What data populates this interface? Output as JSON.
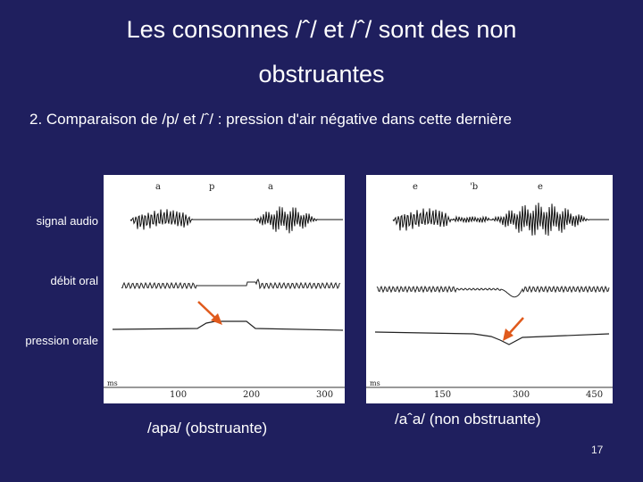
{
  "slide": {
    "title_line1": "Les consonnes /ˆ/ et /ˆ/  sont des non",
    "title_line2": "obstruantes",
    "subtitle": "2.  Comparaison de /p/ et /ˆ/ : pression d'air négative dans cette dernière",
    "labels": {
      "audio": "signal audio",
      "oral_flow": "débit oral",
      "oral_pressure": "pression orale"
    },
    "captions": {
      "left": "/apa/ (obstruante)",
      "right": "/aˆa/ (non obstruante)"
    },
    "page_number": "17"
  },
  "figures": {
    "left": {
      "segments": [
        "a",
        "p",
        "a"
      ],
      "axis_unit": "ms",
      "ticks": [
        "100",
        "200",
        "300"
      ],
      "arrow_color": "#e05a1c"
    },
    "right": {
      "segments": [
        "e",
        "'b",
        "e"
      ],
      "axis_unit": "ms",
      "ticks": [
        "150",
        "300",
        "450"
      ],
      "arrow_color": "#e05a1c"
    }
  }
}
